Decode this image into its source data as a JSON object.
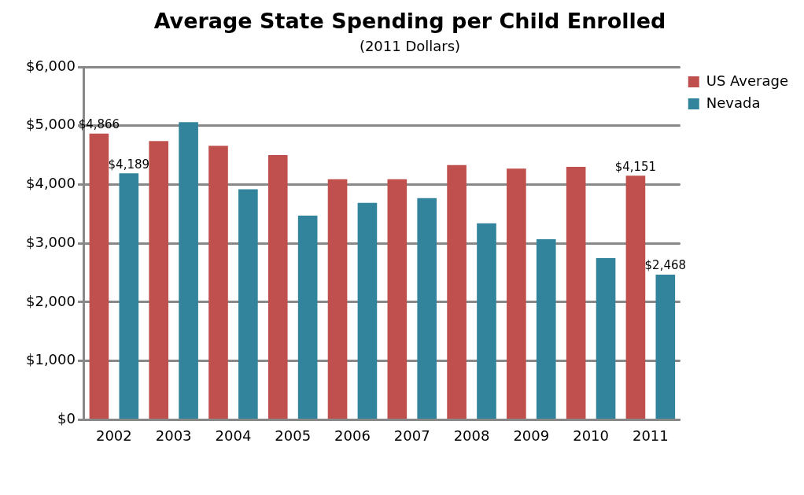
{
  "chart_data": {
    "type": "bar",
    "title": "Average State Spending per Child Enrolled",
    "subtitle": "(2011 Dollars)",
    "categories": [
      "2002",
      "2003",
      "2004",
      "2005",
      "2006",
      "2007",
      "2008",
      "2009",
      "2010",
      "2011"
    ],
    "series": [
      {
        "name": "US Average",
        "color": "#c0504d",
        "values": [
          4866,
          4740,
          4660,
          4500,
          4090,
          4090,
          4330,
          4270,
          4300,
          4151
        ],
        "value_labels": [
          "$4,866",
          null,
          null,
          null,
          null,
          null,
          null,
          null,
          null,
          "$4,151"
        ]
      },
      {
        "name": "Nevada",
        "color": "#31849b",
        "values": [
          4189,
          5060,
          3920,
          3470,
          3690,
          3770,
          3340,
          3070,
          2750,
          2468
        ],
        "value_labels": [
          "$4,189",
          null,
          null,
          null,
          null,
          null,
          null,
          null,
          null,
          "$2,468"
        ]
      }
    ],
    "ylim": [
      0,
      6000
    ],
    "yticks": [
      {
        "value": 0,
        "label": "$0"
      },
      {
        "value": 1000,
        "label": "$1,000"
      },
      {
        "value": 2000,
        "label": "$2,000"
      },
      {
        "value": 3000,
        "label": "$3,000"
      },
      {
        "value": 4000,
        "label": "$4,000"
      },
      {
        "value": 5000,
        "label": "$5,000"
      },
      {
        "value": 6000,
        "label": "$6,000"
      }
    ],
    "grid": "y",
    "legend": "top right"
  }
}
